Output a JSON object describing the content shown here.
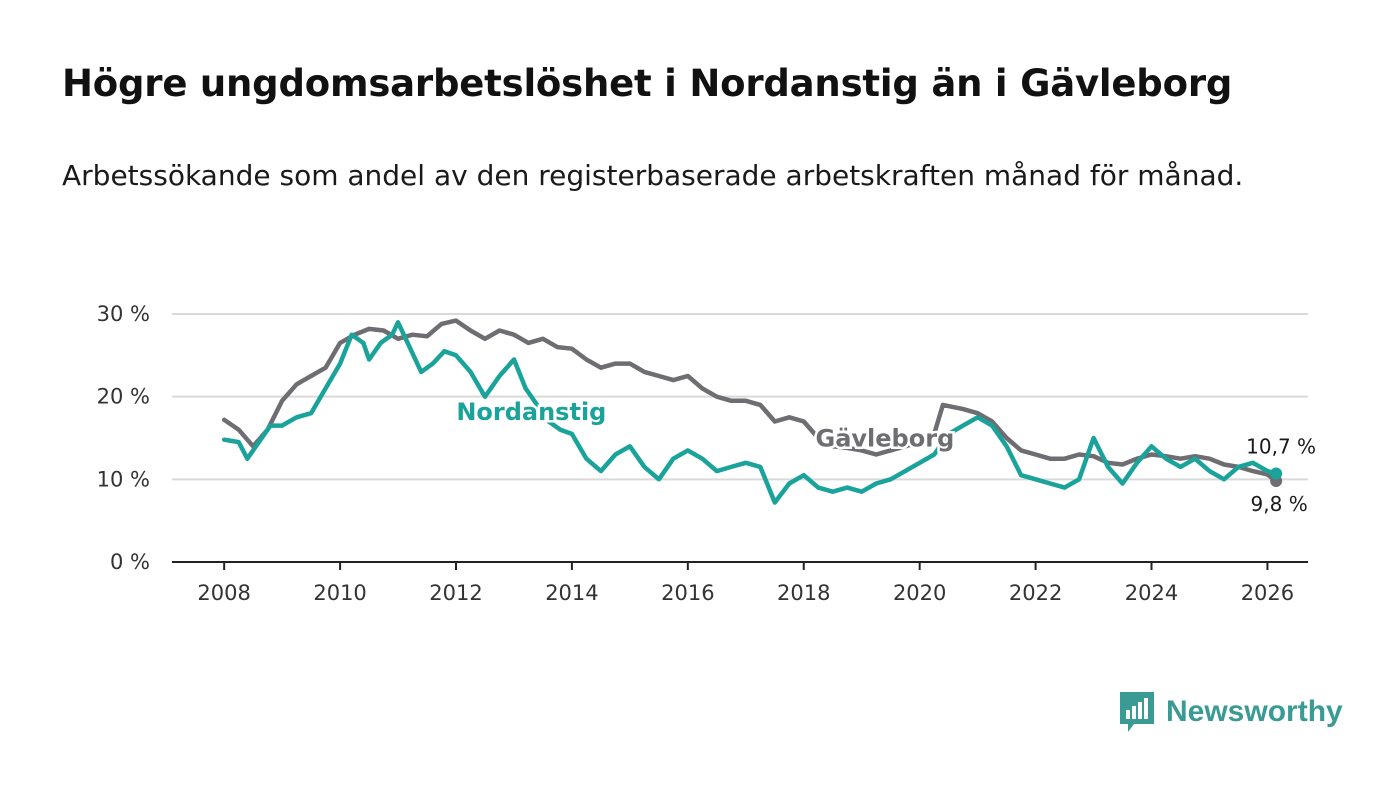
{
  "title": "Högre ungdomsarbetslöshet i Nordanstig än i Gävleborg",
  "subtitle": "Arbetssökande som andel av den registerbaserade arbetskraften månad för månad.",
  "brand": {
    "name": "Newsworthy",
    "icon": "newsworthy-logo-icon",
    "color": "#3a9a94"
  },
  "colors": {
    "nordanstig": "#1aa39a",
    "gavleborg": "#6e6d72",
    "grid": "#d9d9d9",
    "axis": "#222222"
  },
  "chart_data": {
    "type": "line",
    "title": "Högre ungdomsarbetslöshet i Nordanstig än i Gävleborg",
    "xlabel": "",
    "ylabel": "",
    "xlim": [
      2007.1,
      2026.7
    ],
    "ylim": [
      0,
      30
    ],
    "x_ticks": [
      2008,
      2010,
      2012,
      2014,
      2016,
      2018,
      2020,
      2022,
      2024,
      2026
    ],
    "x_tick_labels": [
      "2008",
      "2010",
      "2012",
      "2014",
      "2016",
      "2018",
      "2020",
      "2022",
      "2024",
      "2026"
    ],
    "y_ticks": [
      0,
      10,
      20,
      30
    ],
    "y_tick_labels": [
      "0 %",
      "10 %",
      "20 %",
      "30 %"
    ],
    "grid": "horizontal",
    "series": [
      {
        "name": "Gävleborg",
        "label": "Gävleborg",
        "end_label": "9,8 %",
        "points": [
          [
            2008.0,
            17.2
          ],
          [
            2008.25,
            16.0
          ],
          [
            2008.5,
            14.0
          ],
          [
            2008.75,
            16.0
          ],
          [
            2009.0,
            19.5
          ],
          [
            2009.25,
            21.5
          ],
          [
            2009.5,
            22.5
          ],
          [
            2009.75,
            23.5
          ],
          [
            2010.0,
            26.5
          ],
          [
            2010.25,
            27.5
          ],
          [
            2010.5,
            28.2
          ],
          [
            2010.75,
            28.0
          ],
          [
            2011.0,
            27.0
          ],
          [
            2011.25,
            27.5
          ],
          [
            2011.5,
            27.3
          ],
          [
            2011.75,
            28.8
          ],
          [
            2012.0,
            29.2
          ],
          [
            2012.25,
            28.0
          ],
          [
            2012.5,
            27.0
          ],
          [
            2012.75,
            28.0
          ],
          [
            2013.0,
            27.5
          ],
          [
            2013.25,
            26.5
          ],
          [
            2013.5,
            27.0
          ],
          [
            2013.75,
            26.0
          ],
          [
            2014.0,
            25.8
          ],
          [
            2014.25,
            24.5
          ],
          [
            2014.5,
            23.5
          ],
          [
            2014.75,
            24.0
          ],
          [
            2015.0,
            24.0
          ],
          [
            2015.25,
            23.0
          ],
          [
            2015.5,
            22.5
          ],
          [
            2015.75,
            22.0
          ],
          [
            2016.0,
            22.5
          ],
          [
            2016.25,
            21.0
          ],
          [
            2016.5,
            20.0
          ],
          [
            2016.75,
            19.5
          ],
          [
            2017.0,
            19.5
          ],
          [
            2017.25,
            19.0
          ],
          [
            2017.5,
            17.0
          ],
          [
            2017.75,
            17.5
          ],
          [
            2018.0,
            17.0
          ],
          [
            2018.25,
            15.0
          ],
          [
            2018.5,
            14.0
          ],
          [
            2018.75,
            13.8
          ],
          [
            2019.0,
            13.5
          ],
          [
            2019.25,
            13.0
          ],
          [
            2019.5,
            13.5
          ],
          [
            2019.75,
            14.0
          ],
          [
            2020.0,
            14.5
          ],
          [
            2020.25,
            15.5
          ],
          [
            2020.4,
            19.0
          ],
          [
            2020.75,
            18.5
          ],
          [
            2021.0,
            18.0
          ],
          [
            2021.25,
            17.0
          ],
          [
            2021.5,
            15.0
          ],
          [
            2021.75,
            13.5
          ],
          [
            2022.0,
            13.0
          ],
          [
            2022.25,
            12.5
          ],
          [
            2022.5,
            12.5
          ],
          [
            2022.75,
            13.0
          ],
          [
            2023.0,
            12.8
          ],
          [
            2023.25,
            12.0
          ],
          [
            2023.5,
            11.8
          ],
          [
            2023.75,
            12.5
          ],
          [
            2024.0,
            13.0
          ],
          [
            2024.25,
            12.8
          ],
          [
            2024.5,
            12.5
          ],
          [
            2024.75,
            12.8
          ],
          [
            2025.0,
            12.5
          ],
          [
            2025.25,
            11.8
          ],
          [
            2025.5,
            11.5
          ],
          [
            2025.75,
            11.0
          ],
          [
            2026.0,
            10.6
          ],
          [
            2026.15,
            9.8
          ]
        ]
      },
      {
        "name": "Nordanstig",
        "label": "Nordanstig",
        "end_label": "10,7 %",
        "points": [
          [
            2008.0,
            14.8
          ],
          [
            2008.25,
            14.5
          ],
          [
            2008.4,
            12.5
          ],
          [
            2008.6,
            14.5
          ],
          [
            2008.8,
            16.5
          ],
          [
            2009.0,
            16.5
          ],
          [
            2009.25,
            17.5
          ],
          [
            2009.5,
            18.0
          ],
          [
            2009.75,
            21.0
          ],
          [
            2010.0,
            24.0
          ],
          [
            2010.2,
            27.5
          ],
          [
            2010.4,
            26.5
          ],
          [
            2010.5,
            24.5
          ],
          [
            2010.7,
            26.5
          ],
          [
            2010.9,
            27.5
          ],
          [
            2011.0,
            29.0
          ],
          [
            2011.2,
            26.0
          ],
          [
            2011.4,
            23.0
          ],
          [
            2011.6,
            24.0
          ],
          [
            2011.8,
            25.5
          ],
          [
            2012.0,
            25.0
          ],
          [
            2012.25,
            23.0
          ],
          [
            2012.5,
            20.0
          ],
          [
            2012.75,
            22.5
          ],
          [
            2013.0,
            24.5
          ],
          [
            2013.2,
            21.0
          ],
          [
            2013.4,
            19.0
          ],
          [
            2013.6,
            17.0
          ],
          [
            2013.8,
            16.0
          ],
          [
            2014.0,
            15.5
          ],
          [
            2014.25,
            12.5
          ],
          [
            2014.5,
            11.0
          ],
          [
            2014.75,
            13.0
          ],
          [
            2015.0,
            14.0
          ],
          [
            2015.25,
            11.5
          ],
          [
            2015.5,
            10.0
          ],
          [
            2015.75,
            12.5
          ],
          [
            2016.0,
            13.5
          ],
          [
            2016.25,
            12.5
          ],
          [
            2016.5,
            11.0
          ],
          [
            2016.75,
            11.5
          ],
          [
            2017.0,
            12.0
          ],
          [
            2017.25,
            11.5
          ],
          [
            2017.5,
            7.2
          ],
          [
            2017.75,
            9.5
          ],
          [
            2018.0,
            10.5
          ],
          [
            2018.25,
            9.0
          ],
          [
            2018.5,
            8.5
          ],
          [
            2018.75,
            9.0
          ],
          [
            2019.0,
            8.5
          ],
          [
            2019.25,
            9.5
          ],
          [
            2019.5,
            10.0
          ],
          [
            2019.75,
            11.0
          ],
          [
            2020.0,
            12.0
          ],
          [
            2020.25,
            13.0
          ],
          [
            2020.5,
            15.5
          ],
          [
            2020.75,
            16.5
          ],
          [
            2021.0,
            17.5
          ],
          [
            2021.25,
            16.5
          ],
          [
            2021.5,
            14.0
          ],
          [
            2021.75,
            10.5
          ],
          [
            2022.0,
            10.0
          ],
          [
            2022.25,
            9.5
          ],
          [
            2022.5,
            9.0
          ],
          [
            2022.75,
            10.0
          ],
          [
            2023.0,
            15.0
          ],
          [
            2023.25,
            11.5
          ],
          [
            2023.5,
            9.5
          ],
          [
            2023.75,
            12.0
          ],
          [
            2024.0,
            14.0
          ],
          [
            2024.25,
            12.5
          ],
          [
            2024.5,
            11.5
          ],
          [
            2024.75,
            12.5
          ],
          [
            2025.0,
            11.0
          ],
          [
            2025.25,
            10.0
          ],
          [
            2025.5,
            11.5
          ],
          [
            2025.75,
            12.0
          ],
          [
            2026.0,
            11.0
          ],
          [
            2026.15,
            10.7
          ]
        ]
      }
    ]
  }
}
